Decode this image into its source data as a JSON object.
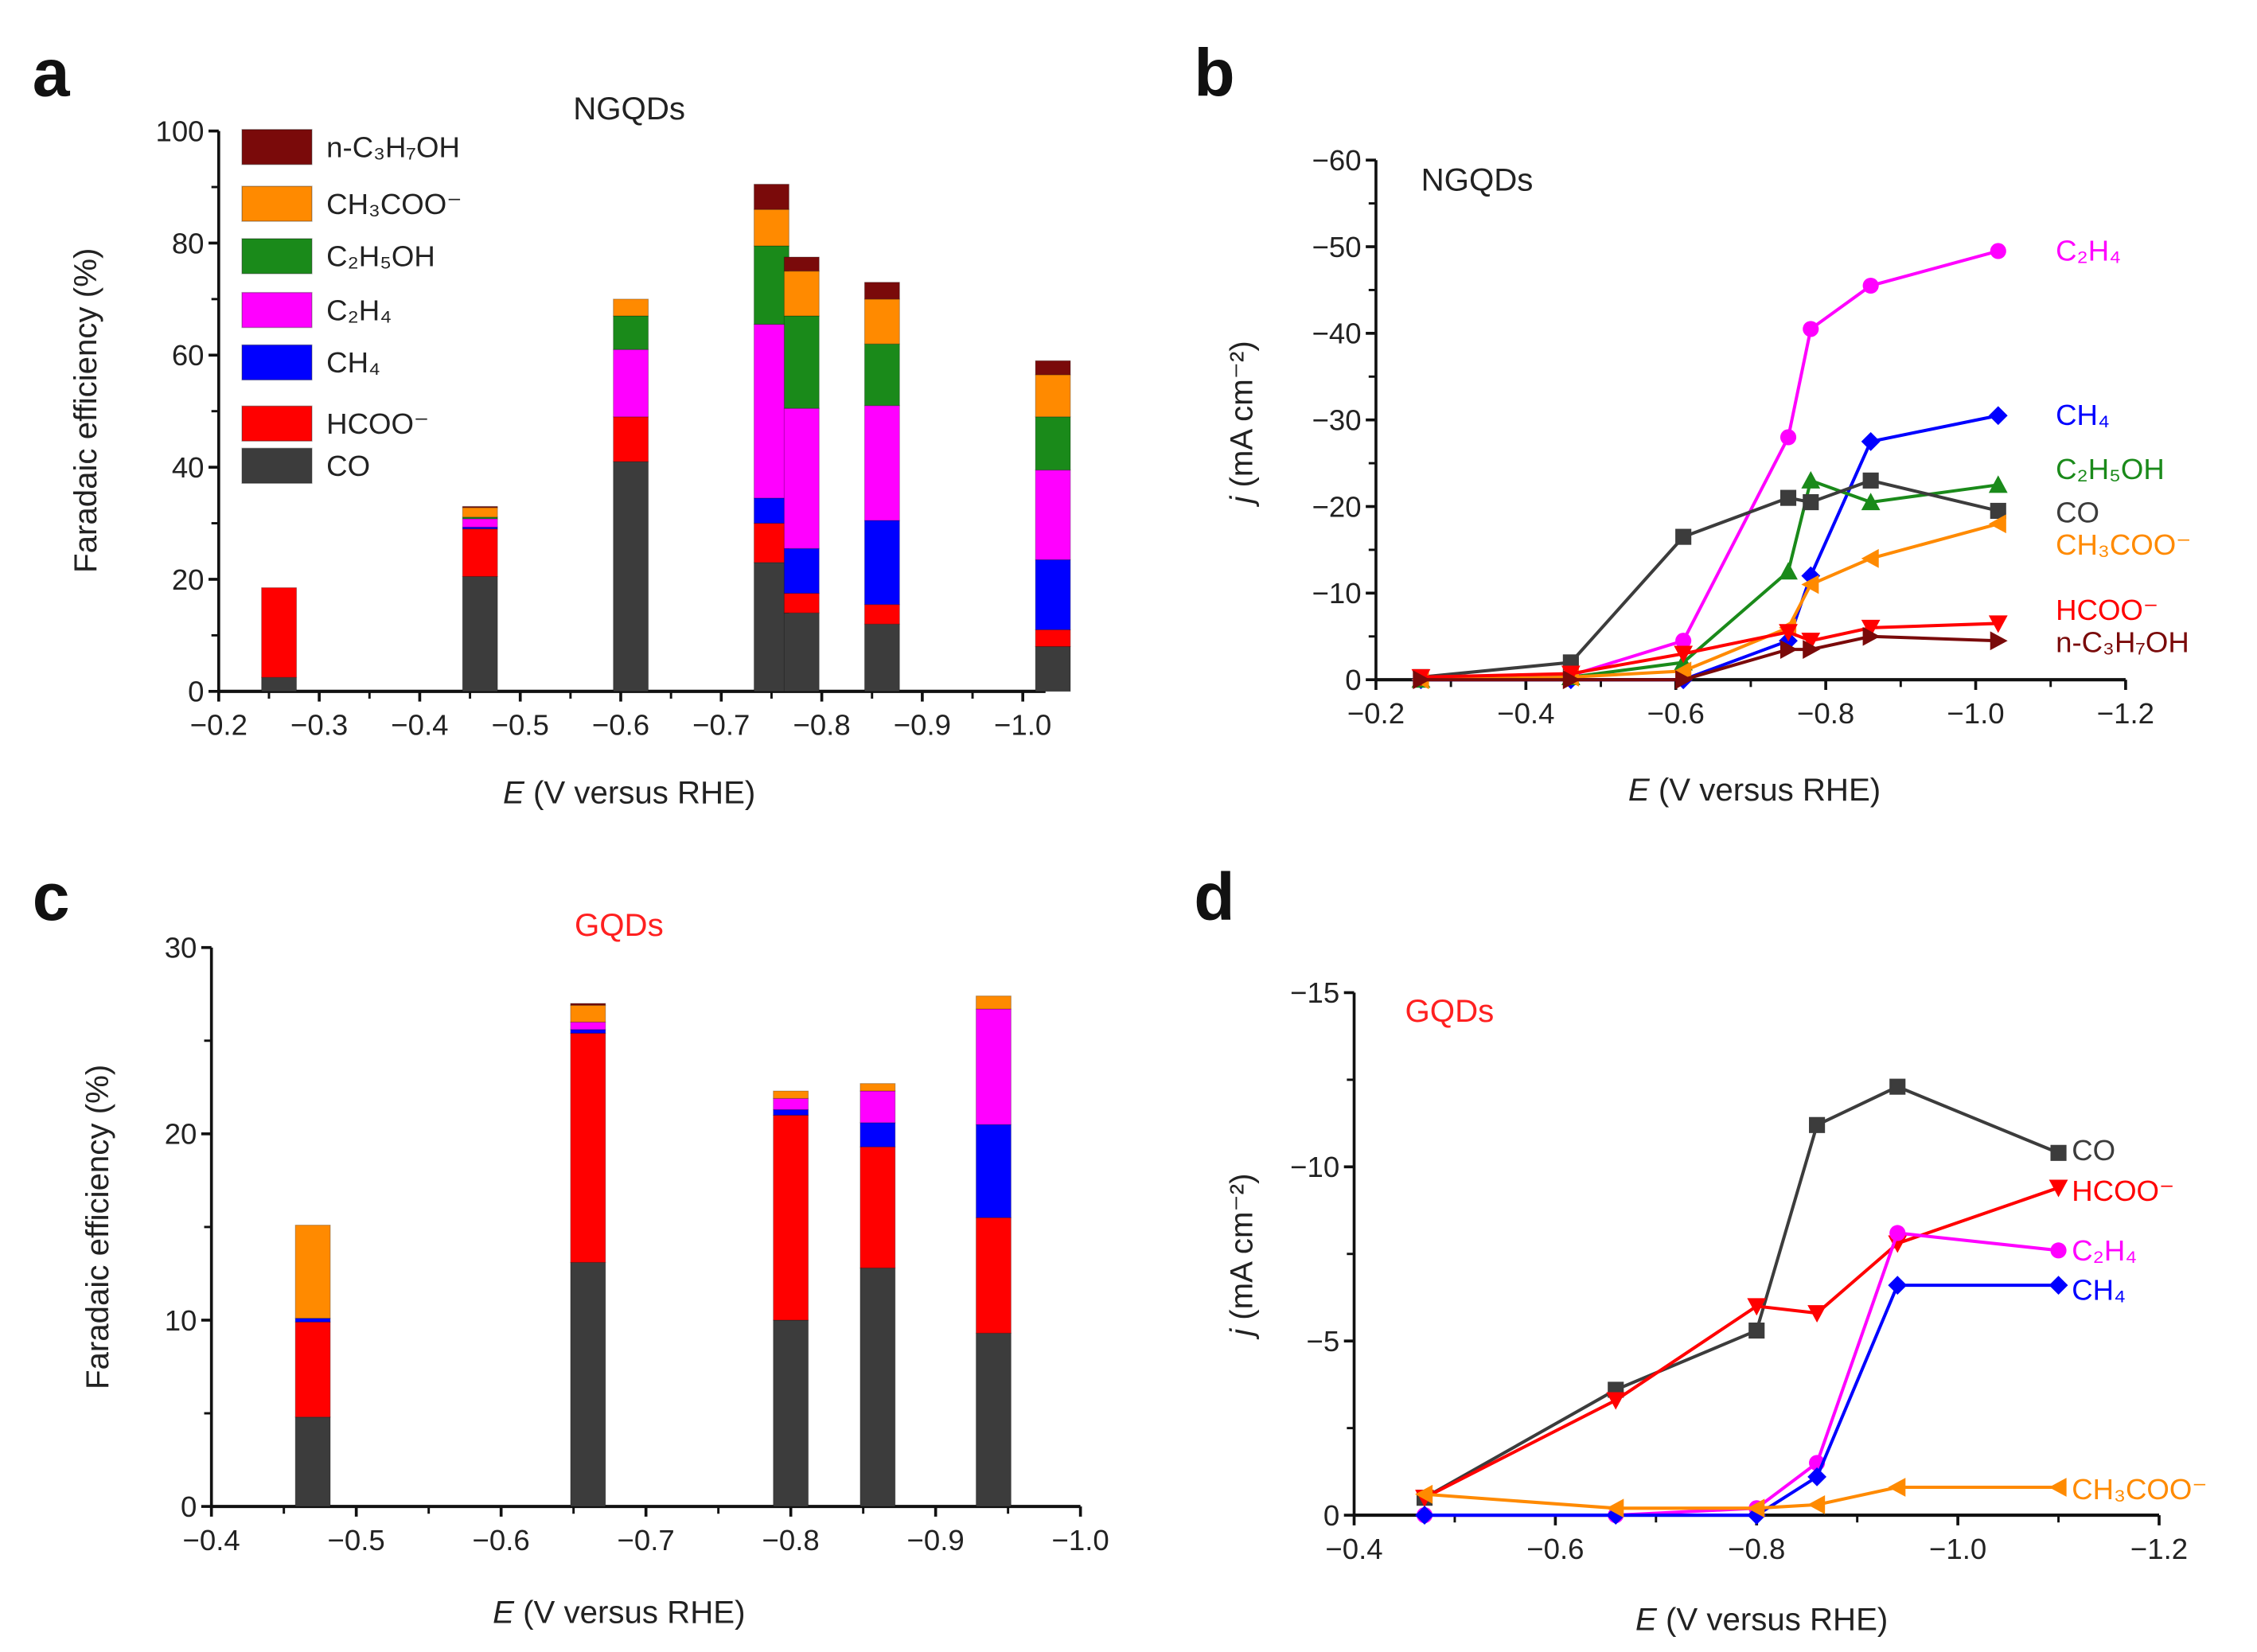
{
  "panels": {
    "a": {
      "letter": "a",
      "title": "NGQDs",
      "title_color": "#222222"
    },
    "b": {
      "letter": "b",
      "title": "NGQDs",
      "title_color": "#222222"
    },
    "c": {
      "letter": "c",
      "title": "GQDs",
      "title_color": "#ff2020"
    },
    "d": {
      "letter": "d",
      "title": "GQDs",
      "title_color": "#ff2020"
    }
  },
  "labels": {
    "x_var": "E",
    "x_rest": " (V versus RHE)",
    "fe": "Faradaic efficiency (%)",
    "j_var": "j",
    "j_rest": " (mA cm⁻²)"
  },
  "products": {
    "CO": {
      "label": "CO",
      "color": "#3c3c3c"
    },
    "HCOO": {
      "label": "HCOO⁻",
      "color": "#ff0000"
    },
    "CH4": {
      "label": "CH₄",
      "color": "#0000ff"
    },
    "C2H4": {
      "label": "C₂H₄",
      "color": "#ff00ff"
    },
    "C2H5OH": {
      "label": "C₂H₅OH",
      "color": "#1a8a1a"
    },
    "CH3COO": {
      "label": "CH₃COO⁻",
      "color": "#ff8a00"
    },
    "nC3H7OH": {
      "label": "n-C₃H₇OH",
      "color": "#7a0a0a"
    }
  },
  "chart_data": [
    {
      "id": "a",
      "type": "bar",
      "stacked": true,
      "title": "NGQDs",
      "xlabel": "E (V versus RHE)",
      "ylabel": "Faradaic efficiency (%)",
      "xlim": [
        -0.2,
        -1.04
      ],
      "ylim": [
        0,
        100
      ],
      "xticks": [
        "−0.2",
        "−0.3",
        "−0.4",
        "−0.5",
        "−0.6",
        "−0.7",
        "−0.8",
        "−0.9",
        "−1.0"
      ],
      "yticks": [
        "0",
        "20",
        "40",
        "60",
        "80",
        "100"
      ],
      "legend": "top-left",
      "x": [
        -0.26,
        -0.46,
        -0.61,
        -0.75,
        -0.78,
        -0.86,
        -1.03
      ],
      "series": [
        {
          "key": "CO",
          "values": [
            2.5,
            20.5,
            41,
            23,
            14,
            12,
            8
          ]
        },
        {
          "key": "HCOO",
          "values": [
            16,
            8.5,
            8,
            7,
            3.5,
            3.5,
            3
          ]
        },
        {
          "key": "CH4",
          "values": [
            0,
            0.3,
            0,
            4.5,
            8,
            15,
            12.5
          ]
        },
        {
          "key": "C2H4",
          "values": [
            0,
            1.5,
            12,
            31,
            25,
            20.5,
            16
          ]
        },
        {
          "key": "C2H5OH",
          "values": [
            0,
            0.3,
            6,
            14,
            16.5,
            11,
            9.5
          ]
        },
        {
          "key": "CH3COO",
          "values": [
            0,
            1.7,
            3,
            6.5,
            8,
            8,
            7.5
          ]
        },
        {
          "key": "nC3H7OH",
          "values": [
            0,
            0.2,
            0,
            4.5,
            2.5,
            3,
            2.5
          ]
        }
      ]
    },
    {
      "id": "b",
      "type": "line",
      "title": "NGQDs",
      "xlabel": "E (V versus RHE)",
      "ylabel": "j (mA cm⁻²)",
      "xlim": [
        -0.2,
        -1.2
      ],
      "ylim": [
        0,
        -60
      ],
      "xticks": [
        "−0.2",
        "−0.4",
        "−0.6",
        "−0.8",
        "−1.0",
        "−1.2"
      ],
      "yticks": [
        "0",
        "−10",
        "−20",
        "−30",
        "−40",
        "−50",
        "−60"
      ],
      "x": [
        -0.26,
        -0.46,
        -0.61,
        -0.75,
        -0.78,
        -0.86,
        -1.03
      ],
      "series": [
        {
          "key": "C2H4",
          "marker": "circle",
          "values": [
            0,
            -0.5,
            -4.5,
            -28,
            -40.5,
            -45.5,
            -49.5
          ]
        },
        {
          "key": "CH4",
          "marker": "diamond",
          "values": [
            0,
            0,
            0,
            -4.5,
            -12,
            -27.5,
            -30.5
          ]
        },
        {
          "key": "C2H5OH",
          "marker": "triangle-up",
          "values": [
            0,
            -0.3,
            -2,
            -12.5,
            -23,
            -20.5,
            -22.5
          ]
        },
        {
          "key": "CO",
          "marker": "square",
          "values": [
            -0.3,
            -2,
            -16.5,
            -21,
            -20.5,
            -23,
            -19.5
          ]
        },
        {
          "key": "CH3COO",
          "marker": "triangle-left",
          "values": [
            0,
            -0.3,
            -1,
            -6,
            -11,
            -14,
            -18
          ]
        },
        {
          "key": "HCOO",
          "marker": "triangle-down",
          "values": [
            -0.3,
            -0.7,
            -3,
            -5.5,
            -4.5,
            -6,
            -6.5
          ]
        },
        {
          "key": "nC3H7OH",
          "marker": "triangle-right",
          "values": [
            0,
            0,
            0,
            -3.5,
            -3.5,
            -5,
            -4.5
          ]
        }
      ]
    },
    {
      "id": "c",
      "type": "bar",
      "stacked": true,
      "title": "GQDs",
      "xlabel": "E (V versus RHE)",
      "ylabel": "Faradaic efficiency (%)",
      "xlim": [
        -0.4,
        -1.0
      ],
      "ylim": [
        0,
        30
      ],
      "xticks": [
        "−0.4",
        "−0.5",
        "−0.6",
        "−0.7",
        "−0.8",
        "−0.9",
        "−1.0"
      ],
      "yticks": [
        "0",
        "10",
        "20",
        "30"
      ],
      "x": [
        -0.47,
        -0.66,
        -0.8,
        -0.86,
        -0.94
      ],
      "series": [
        {
          "key": "CO",
          "values": [
            4.8,
            13.1,
            10.0,
            12.8,
            9.3
          ]
        },
        {
          "key": "HCOO",
          "values": [
            5.1,
            12.3,
            11.0,
            6.5,
            6.2
          ]
        },
        {
          "key": "CH4",
          "values": [
            0.2,
            0.2,
            0.3,
            1.3,
            5.0
          ]
        },
        {
          "key": "C2H4",
          "values": [
            0,
            0.4,
            0.6,
            1.7,
            6.2
          ]
        },
        {
          "key": "C2H5OH",
          "values": [
            0,
            0,
            0,
            0,
            0
          ]
        },
        {
          "key": "CH3COO",
          "values": [
            5.0,
            0.9,
            0.4,
            0.4,
            0.7
          ]
        },
        {
          "key": "nC3H7OH",
          "values": [
            0,
            0.1,
            0,
            0,
            0
          ]
        }
      ]
    },
    {
      "id": "d",
      "type": "line",
      "title": "GQDs",
      "xlabel": "E (V versus RHE)",
      "ylabel": "j (mA cm⁻²)",
      "xlim": [
        -0.4,
        -1.2
      ],
      "ylim": [
        0,
        -15
      ],
      "xticks": [
        "−0.4",
        "−0.6",
        "−0.8",
        "−1.0",
        "−1.2"
      ],
      "yticks": [
        "0",
        "−5",
        "−10",
        "−15"
      ],
      "x": [
        -0.47,
        -0.66,
        -0.8,
        -0.86,
        -0.94,
        -1.1
      ],
      "series": [
        {
          "key": "CO",
          "marker": "square",
          "values": [
            -0.5,
            -3.6,
            -5.3,
            -11.2,
            -12.3,
            -10.4
          ]
        },
        {
          "key": "HCOO",
          "marker": "triangle-down",
          "values": [
            -0.5,
            -3.3,
            -6.0,
            -5.8,
            -7.8,
            -9.4
          ]
        },
        {
          "key": "C2H4",
          "marker": "circle",
          "values": [
            0,
            0,
            -0.2,
            -1.5,
            -8.1,
            -7.6
          ]
        },
        {
          "key": "CH4",
          "marker": "diamond",
          "values": [
            0,
            0,
            0,
            -1.1,
            -6.6,
            -6.6
          ]
        },
        {
          "key": "CH3COO",
          "marker": "triangle-left",
          "values": [
            -0.6,
            -0.2,
            -0.2,
            -0.3,
            -0.8,
            -0.8
          ]
        }
      ]
    }
  ]
}
